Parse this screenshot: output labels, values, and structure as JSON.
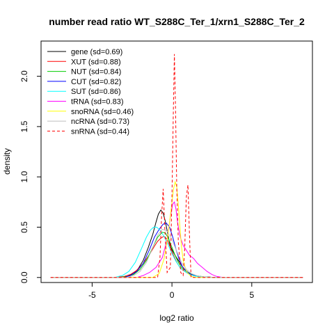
{
  "chart_data": {
    "type": "line",
    "title": "number read ratio WT_S288C_Ter_1/xrn1_S288C_Ter_2",
    "xlabel": "log2 ratio",
    "ylabel": "density",
    "xlim": [
      -8.2,
      8.8
    ],
    "ylim": [
      -0.05,
      2.35
    ],
    "x_ticks": [
      -5,
      0,
      5
    ],
    "x_tick_labels": [
      "-5",
      "0",
      "5"
    ],
    "y_ticks": [
      0.0,
      0.5,
      1.0,
      1.5,
      2.0
    ],
    "y_tick_labels": [
      "0.0",
      "0.5",
      "1.0",
      "1.5",
      "2.0"
    ],
    "grid": false,
    "legend_position": "top-left",
    "series": [
      {
        "name": "gene (sd=0.69)",
        "color": "#000000",
        "dashed": false,
        "x": [
          -7.6,
          -3.5,
          -2.8,
          -2.4,
          -2.1,
          -1.8,
          -1.5,
          -1.2,
          -1.0,
          -0.85,
          -0.7,
          -0.55,
          -0.4,
          -0.25,
          -0.1,
          0.05,
          0.2,
          0.4,
          0.6,
          0.8,
          1.0,
          1.3,
          1.6,
          2.0,
          2.5,
          3.0,
          8.2
        ],
        "y": [
          0.0,
          0.0,
          0.01,
          0.04,
          0.09,
          0.17,
          0.29,
          0.43,
          0.55,
          0.63,
          0.67,
          0.64,
          0.55,
          0.42,
          0.31,
          0.26,
          0.22,
          0.17,
          0.12,
          0.08,
          0.05,
          0.03,
          0.015,
          0.005,
          0.002,
          0.0,
          0.0
        ]
      },
      {
        "name": "XUT (sd=0.88)",
        "color": "#ff0000",
        "dashed": false,
        "x": [
          -7.6,
          -3.5,
          -3.0,
          -2.6,
          -2.2,
          -1.8,
          -1.4,
          -1.1,
          -0.9,
          -0.7,
          -0.5,
          -0.3,
          -0.1,
          0.1,
          0.3,
          0.5,
          0.7,
          1.0,
          1.3,
          1.6,
          2.0,
          2.5,
          3.0,
          8.2
        ],
        "y": [
          0.0,
          0.0,
          0.01,
          0.03,
          0.07,
          0.14,
          0.23,
          0.31,
          0.36,
          0.39,
          0.41,
          0.38,
          0.3,
          0.22,
          0.15,
          0.1,
          0.07,
          0.04,
          0.02,
          0.01,
          0.005,
          0.002,
          0.0,
          0.0
        ]
      },
      {
        "name": "NUT (sd=0.84)",
        "color": "#00cd00",
        "dashed": false,
        "x": [
          -7.6,
          -3.3,
          -2.8,
          -2.4,
          -2.0,
          -1.6,
          -1.2,
          -0.9,
          -0.6,
          -0.4,
          -0.2,
          0.0,
          0.2,
          0.4,
          0.6,
          0.9,
          1.2,
          1.6,
          2.0,
          2.5,
          3.0,
          8.2
        ],
        "y": [
          0.0,
          0.0,
          0.01,
          0.03,
          0.08,
          0.17,
          0.3,
          0.4,
          0.45,
          0.44,
          0.38,
          0.3,
          0.22,
          0.15,
          0.1,
          0.06,
          0.035,
          0.015,
          0.006,
          0.002,
          0.0,
          0.0
        ]
      },
      {
        "name": "CUT (sd=0.82)",
        "color": "#0000ff",
        "dashed": false,
        "x": [
          -7.6,
          -3.0,
          -2.6,
          -2.2,
          -1.8,
          -1.4,
          -1.1,
          -0.8,
          -0.55,
          -0.35,
          -0.15,
          0.05,
          0.25,
          0.45,
          0.65,
          0.9,
          1.2,
          1.5,
          1.9,
          2.4,
          3.0,
          8.2
        ],
        "y": [
          0.0,
          0.0,
          0.02,
          0.06,
          0.14,
          0.28,
          0.4,
          0.48,
          0.53,
          0.54,
          0.5,
          0.4,
          0.28,
          0.18,
          0.11,
          0.06,
          0.03,
          0.015,
          0.006,
          0.002,
          0.0,
          0.0
        ]
      },
      {
        "name": "SUT (sd=0.86)",
        "color": "#00ffff",
        "dashed": false,
        "x": [
          -7.6,
          -3.6,
          -3.1,
          -2.7,
          -2.3,
          -1.9,
          -1.6,
          -1.35,
          -1.15,
          -0.95,
          -0.75,
          -0.5,
          -0.25,
          0.0,
          0.25,
          0.5,
          0.8,
          1.1,
          1.5,
          2.0,
          2.6,
          8.2
        ],
        "y": [
          0.0,
          0.0,
          0.02,
          0.06,
          0.15,
          0.29,
          0.4,
          0.47,
          0.5,
          0.5,
          0.47,
          0.41,
          0.33,
          0.24,
          0.16,
          0.1,
          0.06,
          0.03,
          0.012,
          0.004,
          0.0,
          0.0
        ]
      },
      {
        "name": "tRNA (sd=0.83)",
        "color": "#ff00ff",
        "dashed": false,
        "x": [
          -7.6,
          -2.2,
          -1.8,
          -1.4,
          -1.0,
          -0.6,
          -0.3,
          -0.1,
          0.05,
          0.15,
          0.25,
          0.35,
          0.5,
          0.7,
          0.9,
          1.1,
          1.35,
          1.6,
          1.9,
          2.2,
          2.5,
          2.8,
          3.2,
          8.2
        ],
        "y": [
          0.0,
          0.0,
          0.02,
          0.05,
          0.1,
          0.2,
          0.38,
          0.6,
          0.73,
          0.75,
          0.68,
          0.55,
          0.41,
          0.32,
          0.27,
          0.22,
          0.19,
          0.14,
          0.1,
          0.06,
          0.03,
          0.01,
          0.0,
          0.0
        ]
      },
      {
        "name": "snoRNA (sd=0.46)",
        "color": "#ffff00",
        "dashed": false,
        "x": [
          -7.6,
          -1.2,
          -0.8,
          -0.5,
          -0.25,
          -0.05,
          0.1,
          0.2,
          0.3,
          0.4,
          0.5,
          0.6,
          0.7,
          0.9,
          1.2,
          1.5,
          8.2
        ],
        "y": [
          0.0,
          0.0,
          0.04,
          0.18,
          0.42,
          0.68,
          0.88,
          0.95,
          0.9,
          0.72,
          0.5,
          0.3,
          0.17,
          0.06,
          0.01,
          0.0,
          0.0
        ]
      },
      {
        "name": "ncRNA (sd=0.73)",
        "color": "#bebebe",
        "dashed": false,
        "x": [
          -7.6,
          -2.8,
          -2.4,
          -2.0,
          -1.6,
          -1.2,
          -0.9,
          -0.6,
          -0.3,
          0.0,
          0.3,
          0.6,
          0.9,
          1.2,
          1.6,
          2.0,
          2.5,
          8.2
        ],
        "y": [
          0.0,
          0.0,
          0.02,
          0.06,
          0.15,
          0.3,
          0.42,
          0.48,
          0.46,
          0.38,
          0.26,
          0.15,
          0.08,
          0.04,
          0.015,
          0.005,
          0.0,
          0.0
        ]
      },
      {
        "name": "snRNA (sd=0.44)",
        "color": "#ff0000",
        "dashed": true,
        "x": [
          -7.6,
          -0.9,
          -0.75,
          -0.65,
          -0.55,
          -0.45,
          -0.3,
          -0.1,
          0.0,
          0.08,
          0.15,
          0.22,
          0.3,
          0.4,
          0.55,
          0.7,
          0.8,
          0.9,
          1.0,
          1.1,
          1.2,
          8.2
        ],
        "y": [
          0.0,
          0.0,
          0.2,
          0.6,
          0.88,
          0.5,
          0.05,
          0.1,
          0.8,
          1.6,
          2.22,
          1.7,
          0.9,
          0.35,
          0.05,
          0.02,
          0.3,
          0.8,
          0.92,
          0.4,
          0.0,
          0.0
        ]
      }
    ]
  }
}
